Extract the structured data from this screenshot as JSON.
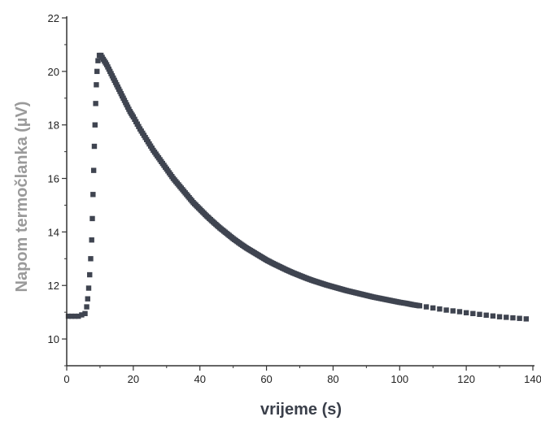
{
  "chart_data": {
    "type": "scatter",
    "title": "",
    "xlabel": "vrijeme (s)",
    "ylabel": "Napom termočlanka (µV)",
    "xlim": [
      0,
      140
    ],
    "ylim": [
      9,
      22
    ],
    "x_ticks": [
      0,
      20,
      40,
      60,
      80,
      100,
      120,
      140
    ],
    "y_ticks": [
      10,
      12,
      14,
      16,
      18,
      20,
      22
    ],
    "grid": false,
    "legend": "none",
    "marker": "square",
    "marker_color": "#3f4450",
    "series": [
      {
        "points": [
          [
            0.5,
            10.85
          ],
          [
            1.5,
            10.85
          ],
          [
            2.5,
            10.85
          ],
          [
            3.5,
            10.85
          ],
          [
            4.5,
            10.9
          ],
          [
            5.5,
            10.95
          ],
          [
            6.0,
            11.2
          ],
          [
            6.3,
            11.5
          ],
          [
            6.6,
            11.9
          ],
          [
            6.9,
            12.4
          ],
          [
            7.2,
            13.0
          ],
          [
            7.5,
            13.7
          ],
          [
            7.7,
            14.5
          ],
          [
            7.9,
            15.4
          ],
          [
            8.1,
            16.3
          ],
          [
            8.3,
            17.2
          ],
          [
            8.5,
            18.0
          ],
          [
            8.7,
            18.8
          ],
          [
            8.9,
            19.5
          ],
          [
            9.1,
            20.0
          ],
          [
            9.4,
            20.4
          ],
          [
            9.8,
            20.6
          ],
          [
            10.3,
            20.6
          ],
          [
            11,
            20.45
          ],
          [
            12,
            20.25
          ],
          [
            13,
            20.0
          ],
          [
            14,
            19.75
          ],
          [
            15,
            19.5
          ],
          [
            16,
            19.25
          ],
          [
            17,
            19.0
          ],
          [
            18,
            18.75
          ],
          [
            19,
            18.5
          ],
          [
            20,
            18.3
          ],
          [
            22,
            17.85
          ],
          [
            24,
            17.45
          ],
          [
            26,
            17.05
          ],
          [
            28,
            16.7
          ],
          [
            30,
            16.35
          ],
          [
            32,
            16.0
          ],
          [
            34,
            15.7
          ],
          [
            36,
            15.4
          ],
          [
            38,
            15.1
          ],
          [
            40,
            14.85
          ],
          [
            42,
            14.6
          ],
          [
            44,
            14.37
          ],
          [
            46,
            14.15
          ],
          [
            48,
            13.95
          ],
          [
            50,
            13.75
          ],
          [
            52,
            13.57
          ],
          [
            54,
            13.4
          ],
          [
            56,
            13.25
          ],
          [
            58,
            13.1
          ],
          [
            60,
            12.95
          ],
          [
            62,
            12.82
          ],
          [
            64,
            12.7
          ],
          [
            66,
            12.58
          ],
          [
            68,
            12.47
          ],
          [
            70,
            12.37
          ],
          [
            72,
            12.27
          ],
          [
            74,
            12.18
          ],
          [
            76,
            12.1
          ],
          [
            78,
            12.02
          ],
          [
            80,
            11.95
          ],
          [
            82,
            11.88
          ],
          [
            84,
            11.81
          ],
          [
            86,
            11.75
          ],
          [
            88,
            11.69
          ],
          [
            90,
            11.63
          ],
          [
            92,
            11.57
          ],
          [
            94,
            11.52
          ],
          [
            96,
            11.47
          ],
          [
            98,
            11.42
          ],
          [
            100,
            11.37
          ],
          [
            102,
            11.33
          ],
          [
            104,
            11.28
          ],
          [
            106,
            11.24
          ],
          [
            108,
            11.2
          ],
          [
            110,
            11.16
          ],
          [
            112,
            11.12
          ],
          [
            114,
            11.08
          ],
          [
            116,
            11.05
          ],
          [
            118,
            11.02
          ],
          [
            120,
            10.98
          ],
          [
            122,
            10.95
          ],
          [
            124,
            10.92
          ],
          [
            126,
            10.89
          ],
          [
            128,
            10.86
          ],
          [
            130,
            10.83
          ],
          [
            132,
            10.81
          ],
          [
            134,
            10.79
          ],
          [
            136,
            10.77
          ],
          [
            138,
            10.75
          ]
        ]
      }
    ]
  }
}
